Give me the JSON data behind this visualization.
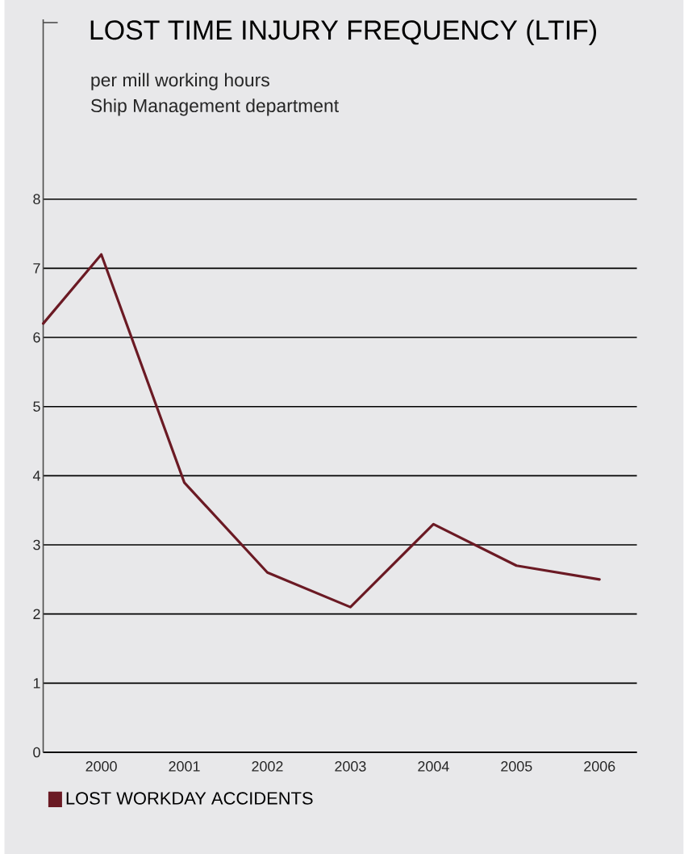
{
  "chart_data": {
    "type": "line",
    "title": "LOST TIME INJURY FREQUENCY (LTIF)",
    "subtitle": "per mill working hours\nShip Management department",
    "x": [
      1999.3,
      2000,
      2001,
      2002,
      2003,
      2004,
      2005,
      2006
    ],
    "series": [
      {
        "name": "LOST WORKDAY ACCIDENTS",
        "color": "#6b1a24",
        "values": [
          6.2,
          7.2,
          3.9,
          2.6,
          2.1,
          3.3,
          2.7,
          2.5
        ]
      }
    ],
    "xlim": [
      1999.3,
      2006.45
    ],
    "xticks": [
      2000,
      2001,
      2002,
      2003,
      2004,
      2005,
      2006
    ],
    "ylim": [
      0,
      10.6
    ],
    "yticks": [
      0,
      1,
      2,
      3,
      4,
      5,
      6,
      7,
      8
    ],
    "grid": "y",
    "legend": "bottom left",
    "marker": "none",
    "line_style": "solid"
  }
}
